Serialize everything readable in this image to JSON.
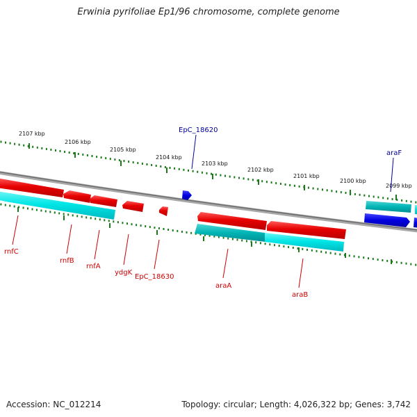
{
  "title": "Erwinia pyrifoliae Ep1/96 chromosome, complete genome",
  "accession": "Accession: NC_012214",
  "topology": "Topology: circular; Length: 4,026,322 bp; Genes: 3,742",
  "colors": {
    "forward_gene": "#e60000",
    "reverse_gene": "#00e6e6",
    "forward_other": "#0000e0",
    "reverse_other": "#00c8c8",
    "backbone": "#808080",
    "tick": "#1a7a1a",
    "label_red": "#cc0000",
    "label_blue": "#000099"
  },
  "ruler": {
    "ticks": [
      {
        "label": "2107 kbp"
      },
      {
        "label": "2106 kbp"
      },
      {
        "label": "2105 kbp"
      },
      {
        "label": "2104 kbp"
      },
      {
        "label": "2103 kbp"
      },
      {
        "label": "2102 kbp"
      },
      {
        "label": "2101 kbp"
      },
      {
        "label": "2100 kbp"
      },
      {
        "label": "2099 kbp"
      }
    ]
  },
  "gene_labels": [
    {
      "name": "EpC_18620",
      "color": "blue"
    },
    {
      "name": "araF",
      "color": "blue"
    },
    {
      "name": "rnfC",
      "color": "red"
    },
    {
      "name": "rnfB",
      "color": "red"
    },
    {
      "name": "rnfA",
      "color": "red"
    },
    {
      "name": "ydgK",
      "color": "red"
    },
    {
      "name": "EpC_18630",
      "color": "red"
    },
    {
      "name": "araA",
      "color": "red"
    },
    {
      "name": "araB",
      "color": "red"
    }
  ]
}
